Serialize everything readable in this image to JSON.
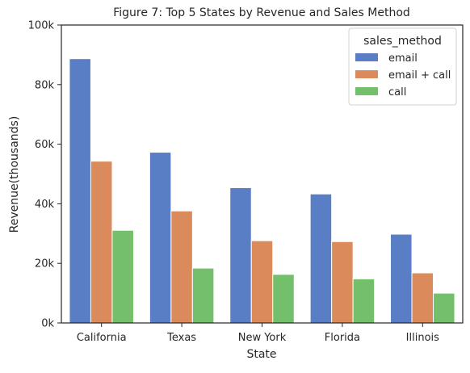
{
  "chart_data": {
    "type": "bar",
    "title": "Figure 7: Top 5 States by Revenue and Sales Method",
    "xlabel": "State",
    "ylabel": "Revenue(thousands)",
    "categories": [
      "California",
      "Texas",
      "New York",
      "Florida",
      "Illinois"
    ],
    "ylim": [
      0,
      100000
    ],
    "yticks": [
      0,
      20000,
      40000,
      60000,
      80000,
      100000
    ],
    "ytick_labels": [
      "0k",
      "20k",
      "40k",
      "60k",
      "80k",
      "100k"
    ],
    "grid": false,
    "legend": {
      "title": "sales_method",
      "position": "top-right"
    },
    "series": [
      {
        "name": "email",
        "color": "#5a7ec6",
        "values": [
          88700,
          57300,
          45400,
          43300,
          29800
        ]
      },
      {
        "name": "email + call",
        "color": "#db8a5c",
        "values": [
          54300,
          37600,
          27600,
          27300,
          16800
        ]
      },
      {
        "name": "call",
        "color": "#74bf6c",
        "values": [
          31100,
          18400,
          16300,
          14800,
          10000
        ]
      }
    ]
  }
}
